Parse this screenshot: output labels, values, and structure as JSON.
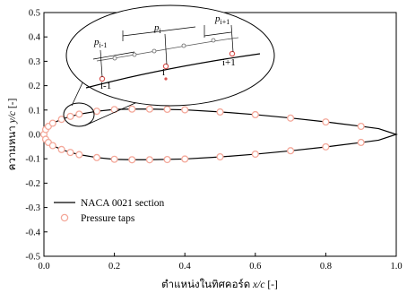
{
  "chart_data": {
    "type": "line",
    "xlabel_thai": "ตำแหน่งในทิศคอร์ด",
    "xlabel_var": "x/c",
    "xlabel_unit": "[-]",
    "ylabel_thai": "ความหนา",
    "ylabel_var": "y/c",
    "ylabel_unit": "[-]",
    "xlim": [
      0.0,
      1.0
    ],
    "ylim": [
      -0.5,
      0.5
    ],
    "xticks": [
      "0.0",
      "0.2",
      "0.4",
      "0.6",
      "0.8",
      "1.0"
    ],
    "yticks": [
      "0.5",
      "0.4",
      "0.3",
      "0.2",
      "0.1",
      "0.0",
      "-0.1",
      "-0.2",
      "-0.3",
      "-0.4",
      "-0.5"
    ],
    "legend_position": "lower-left",
    "series": [
      {
        "name": "NACA 0021 section",
        "kind": "line",
        "color": "#000000",
        "upper_x": [
          0,
          0.0125,
          0.025,
          0.05,
          0.075,
          0.1,
          0.15,
          0.2,
          0.25,
          0.3,
          0.4,
          0.5,
          0.6,
          0.7,
          0.8,
          0.9,
          0.95,
          1.0
        ],
        "upper_y": [
          0,
          0.0333,
          0.0458,
          0.0622,
          0.0738,
          0.0827,
          0.095,
          0.1024,
          0.1039,
          0.1039,
          0.1009,
          0.0924,
          0.0811,
          0.0674,
          0.0514,
          0.0334,
          0.0237,
          0.0
        ]
      },
      {
        "name": "Pressure taps",
        "kind": "scatter",
        "color": "#f4a89a",
        "upper_x": [
          0.0,
          0.005,
          0.0125,
          0.025,
          0.05,
          0.075,
          0.1,
          0.15,
          0.2,
          0.25,
          0.3,
          0.35,
          0.4,
          0.5,
          0.6,
          0.7,
          0.8,
          0.9
        ],
        "upper_y": [
          0.0,
          0.02,
          0.033,
          0.046,
          0.062,
          0.074,
          0.083,
          0.095,
          0.102,
          0.104,
          0.104,
          0.103,
          0.101,
          0.092,
          0.081,
          0.067,
          0.051,
          0.033
        ],
        "lower_x": [
          0.005,
          0.0125,
          0.025,
          0.05,
          0.075,
          0.1,
          0.15,
          0.2,
          0.25,
          0.3,
          0.35,
          0.4,
          0.5,
          0.6,
          0.7,
          0.8,
          0.9
        ],
        "lower_y": [
          -0.02,
          -0.033,
          -0.046,
          -0.062,
          -0.074,
          -0.083,
          -0.095,
          -0.102,
          -0.104,
          -0.104,
          -0.103,
          -0.101,
          -0.092,
          -0.081,
          -0.067,
          -0.051,
          -0.033
        ]
      }
    ],
    "inset": {
      "labels": [
        "p",
        "i-1",
        "p",
        "i",
        "p",
        "i+1",
        "i-1",
        "i",
        "i+1"
      ]
    }
  }
}
